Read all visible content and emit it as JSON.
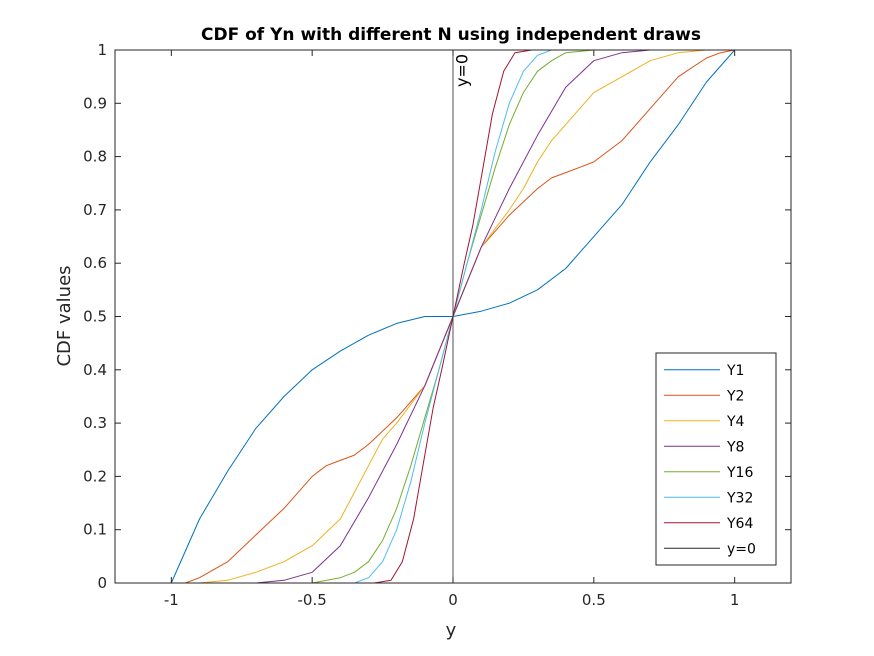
{
  "chart_data": {
    "type": "line",
    "title": "CDF of Yn with different N using independent draws",
    "xlabel": "y",
    "ylabel": "CDF values",
    "xlim": [
      -1.2,
      1.2
    ],
    "ylim": [
      0,
      1
    ],
    "xticks": [
      -1,
      -0.5,
      0,
      0.5,
      1
    ],
    "xtick_labels": [
      "-1",
      "-0.5",
      "0",
      "0.5",
      "1"
    ],
    "yticks": [
      0,
      0.1,
      0.2,
      0.3,
      0.4,
      0.5,
      0.6,
      0.7,
      0.8,
      0.9,
      1
    ],
    "ytick_labels": [
      "0",
      "0.1",
      "0.2",
      "0.3",
      "0.4",
      "0.5",
      "0.6",
      "0.7",
      "0.8",
      "0.9",
      "1"
    ],
    "grid": false,
    "legend_position": "bottom-right",
    "series": [
      {
        "name": "Y1",
        "color": "#0072BD",
        "x": [
          -1.0,
          -0.95,
          -0.9,
          -0.8,
          -0.7,
          -0.6,
          -0.5,
          -0.4,
          -0.3,
          -0.2,
          -0.1,
          0.0,
          0.1,
          0.2,
          0.3,
          0.4,
          0.5,
          0.6,
          0.7,
          0.8,
          0.9,
          0.95,
          1.0
        ],
        "y": [
          0.0,
          0.06,
          0.12,
          0.21,
          0.29,
          0.35,
          0.4,
          0.435,
          0.465,
          0.487,
          0.5,
          0.5,
          0.51,
          0.525,
          0.55,
          0.59,
          0.65,
          0.71,
          0.79,
          0.86,
          0.94,
          0.97,
          1.0
        ]
      },
      {
        "name": "Y2",
        "color": "#D95319",
        "x": [
          -1.0,
          -0.95,
          -0.9,
          -0.8,
          -0.7,
          -0.6,
          -0.5,
          -0.45,
          -0.4,
          -0.35,
          -0.3,
          -0.2,
          -0.1,
          0.0,
          0.1,
          0.2,
          0.3,
          0.35,
          0.4,
          0.45,
          0.5,
          0.6,
          0.7,
          0.8,
          0.9,
          0.95,
          1.0
        ],
        "y": [
          0.0,
          0.0,
          0.01,
          0.04,
          0.09,
          0.14,
          0.2,
          0.22,
          0.23,
          0.24,
          0.26,
          0.31,
          0.37,
          0.5,
          0.63,
          0.69,
          0.74,
          0.76,
          0.77,
          0.78,
          0.79,
          0.83,
          0.89,
          0.95,
          0.985,
          0.995,
          1.0
        ]
      },
      {
        "name": "Y4",
        "color": "#EDB120",
        "x": [
          -0.9,
          -0.8,
          -0.7,
          -0.6,
          -0.5,
          -0.4,
          -0.35,
          -0.3,
          -0.25,
          -0.2,
          -0.1,
          0.0,
          0.1,
          0.2,
          0.25,
          0.3,
          0.35,
          0.4,
          0.5,
          0.6,
          0.7,
          0.8,
          0.9
        ],
        "y": [
          0.0,
          0.005,
          0.02,
          0.04,
          0.07,
          0.12,
          0.17,
          0.22,
          0.27,
          0.3,
          0.37,
          0.5,
          0.63,
          0.7,
          0.74,
          0.79,
          0.83,
          0.86,
          0.92,
          0.95,
          0.98,
          0.995,
          1.0
        ]
      },
      {
        "name": "Y8",
        "color": "#7E2F8E",
        "x": [
          -0.7,
          -0.6,
          -0.5,
          -0.4,
          -0.3,
          -0.2,
          -0.1,
          0.0,
          0.1,
          0.2,
          0.3,
          0.4,
          0.5,
          0.6,
          0.7
        ],
        "y": [
          0.0,
          0.005,
          0.02,
          0.07,
          0.16,
          0.26,
          0.37,
          0.5,
          0.63,
          0.74,
          0.84,
          0.93,
          0.98,
          0.995,
          1.0
        ]
      },
      {
        "name": "Y16",
        "color": "#77AC30",
        "x": [
          -0.5,
          -0.4,
          -0.35,
          -0.3,
          -0.25,
          -0.2,
          -0.15,
          -0.1,
          -0.05,
          0.0,
          0.05,
          0.1,
          0.15,
          0.2,
          0.25,
          0.3,
          0.35,
          0.4,
          0.5
        ],
        "y": [
          0.0,
          0.01,
          0.02,
          0.04,
          0.08,
          0.14,
          0.22,
          0.31,
          0.4,
          0.5,
          0.6,
          0.69,
          0.78,
          0.86,
          0.92,
          0.96,
          0.98,
          0.995,
          1.0
        ]
      },
      {
        "name": "Y32",
        "color": "#4DBEEE",
        "x": [
          -0.35,
          -0.3,
          -0.25,
          -0.2,
          -0.15,
          -0.1,
          -0.05,
          0.0,
          0.05,
          0.1,
          0.15,
          0.2,
          0.25,
          0.3,
          0.35
        ],
        "y": [
          0.0,
          0.01,
          0.04,
          0.1,
          0.19,
          0.3,
          0.4,
          0.5,
          0.6,
          0.7,
          0.81,
          0.9,
          0.96,
          0.99,
          1.0
        ]
      },
      {
        "name": "Y64",
        "color": "#A2142F",
        "x": [
          -0.28,
          -0.22,
          -0.18,
          -0.14,
          -0.1,
          -0.07,
          -0.04,
          0.0,
          0.04,
          0.07,
          0.1,
          0.14,
          0.18,
          0.22,
          0.28
        ],
        "y": [
          0.0,
          0.005,
          0.04,
          0.12,
          0.24,
          0.33,
          0.4,
          0.5,
          0.6,
          0.67,
          0.76,
          0.88,
          0.96,
          0.995,
          1.0
        ]
      },
      {
        "name": "y=0",
        "color": "#262626",
        "x": [
          0,
          0
        ],
        "y": [
          0,
          1
        ]
      }
    ],
    "annotations": [
      {
        "text": "y=0",
        "x": 0.03,
        "y": 0.97,
        "rotation": -90
      }
    ]
  }
}
